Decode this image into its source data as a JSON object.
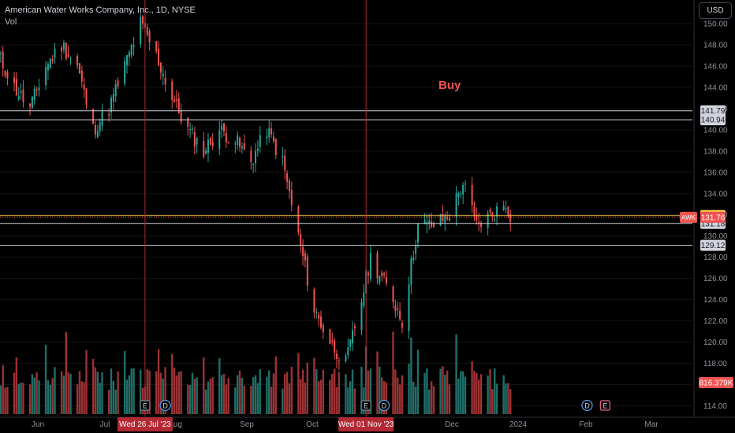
{
  "header": {
    "title": "American Water Works Company, Inc., 1D, NYSE",
    "vol_label": "Vol"
  },
  "currency_button": "USD",
  "annotation": {
    "text": "Buy",
    "color": "#ef5350"
  },
  "colors": {
    "up": "#26a69a",
    "down": "#ef5350",
    "vol_up": "#1f6f68",
    "vol_down": "#9b3234",
    "background": "#000000"
  },
  "chart_data": {
    "type": "candlestick",
    "symbol": "AWK",
    "interval": "1D",
    "exchange": "NYSE",
    "currency": "USD",
    "ylim": [
      113,
      152
    ],
    "y_ticks": [
      "114.00",
      "116.00",
      "118.00",
      "120.00",
      "122.00",
      "124.00",
      "126.00",
      "128.00",
      "130.00",
      "132.00",
      "134.00",
      "136.00",
      "138.00",
      "140.00",
      "142.00",
      "144.00",
      "146.00",
      "148.00",
      "150.00"
    ],
    "x_ticks": [
      "Jun",
      "Jul",
      "Aug",
      "Sep",
      "Oct",
      "Nov",
      "Dec",
      "2024",
      "Feb",
      "Mar"
    ],
    "close_anchors": [
      {
        "date": "2023-05-22",
        "close": 147
      },
      {
        "date": "2023-05-29",
        "close": 144
      },
      {
        "date": "2023-06-05",
        "close": 142
      },
      {
        "date": "2023-06-12",
        "close": 146
      },
      {
        "date": "2023-06-19",
        "close": 148
      },
      {
        "date": "2023-06-26",
        "close": 146
      },
      {
        "date": "2023-07-03",
        "close": 140
      },
      {
        "date": "2023-07-10",
        "close": 142
      },
      {
        "date": "2023-07-17",
        "close": 146
      },
      {
        "date": "2023-07-24",
        "close": 150
      },
      {
        "date": "2023-07-31",
        "close": 147
      },
      {
        "date": "2023-08-07",
        "close": 143
      },
      {
        "date": "2023-08-14",
        "close": 140
      },
      {
        "date": "2023-08-21",
        "close": 138
      },
      {
        "date": "2023-08-28",
        "close": 140
      },
      {
        "date": "2023-09-04",
        "close": 139
      },
      {
        "date": "2023-09-11",
        "close": 137
      },
      {
        "date": "2023-09-18",
        "close": 140
      },
      {
        "date": "2023-09-25",
        "close": 137
      },
      {
        "date": "2023-10-02",
        "close": 130
      },
      {
        "date": "2023-10-09",
        "close": 123
      },
      {
        "date": "2023-10-16",
        "close": 120
      },
      {
        "date": "2023-10-23",
        "close": 118
      },
      {
        "date": "2023-10-30",
        "close": 124
      },
      {
        "date": "2023-11-03",
        "close": 128
      },
      {
        "date": "2023-11-13",
        "close": 124
      },
      {
        "date": "2023-11-17",
        "close": 122
      },
      {
        "date": "2023-11-20",
        "close": 126
      },
      {
        "date": "2023-11-24",
        "close": 131
      },
      {
        "date": "2023-12-01",
        "close": 131
      },
      {
        "date": "2023-12-08",
        "close": 132
      },
      {
        "date": "2023-12-14",
        "close": 135
      },
      {
        "date": "2023-12-20",
        "close": 131
      },
      {
        "date": "2024-01-02",
        "close": 133
      },
      {
        "date": "2024-01-04",
        "close": 132
      }
    ],
    "date_range": [
      "2023-05-22",
      "2024-01-04"
    ],
    "volume_scale": "max ≈ 1.9x the current volume",
    "horizontal_lines": [
      {
        "price": "141.79",
        "color": "#d1d4dc"
      },
      {
        "price": "140.94",
        "color": "#d1d4dc"
      },
      {
        "price": "131.18",
        "color": "#d1d4dc"
      },
      {
        "price": "129.12",
        "color": "#d1d4dc"
      }
    ],
    "current_price": {
      "value": "131.93",
      "color": "#f7c548"
    },
    "last_price": {
      "symbol": "AWK",
      "value": "131.76",
      "color": "#ef5350"
    },
    "volume_label": "816.379K",
    "vertical_markers": [
      {
        "date": "2023-07-26",
        "label": "Wed 26 Jul '23"
      },
      {
        "date": "2023-11-01",
        "label": "Wed 01 Nov '23"
      }
    ],
    "events": [
      {
        "type": "E",
        "date": "2023-07-26"
      },
      {
        "type": "D",
        "date": "2023-08-04"
      },
      {
        "type": "E",
        "date": "2023-11-01"
      },
      {
        "type": "D",
        "date": "2023-11-09"
      },
      {
        "type": "D",
        "date": "2024-02-07"
      },
      {
        "type": "E",
        "date": "2024-02-15"
      }
    ]
  }
}
